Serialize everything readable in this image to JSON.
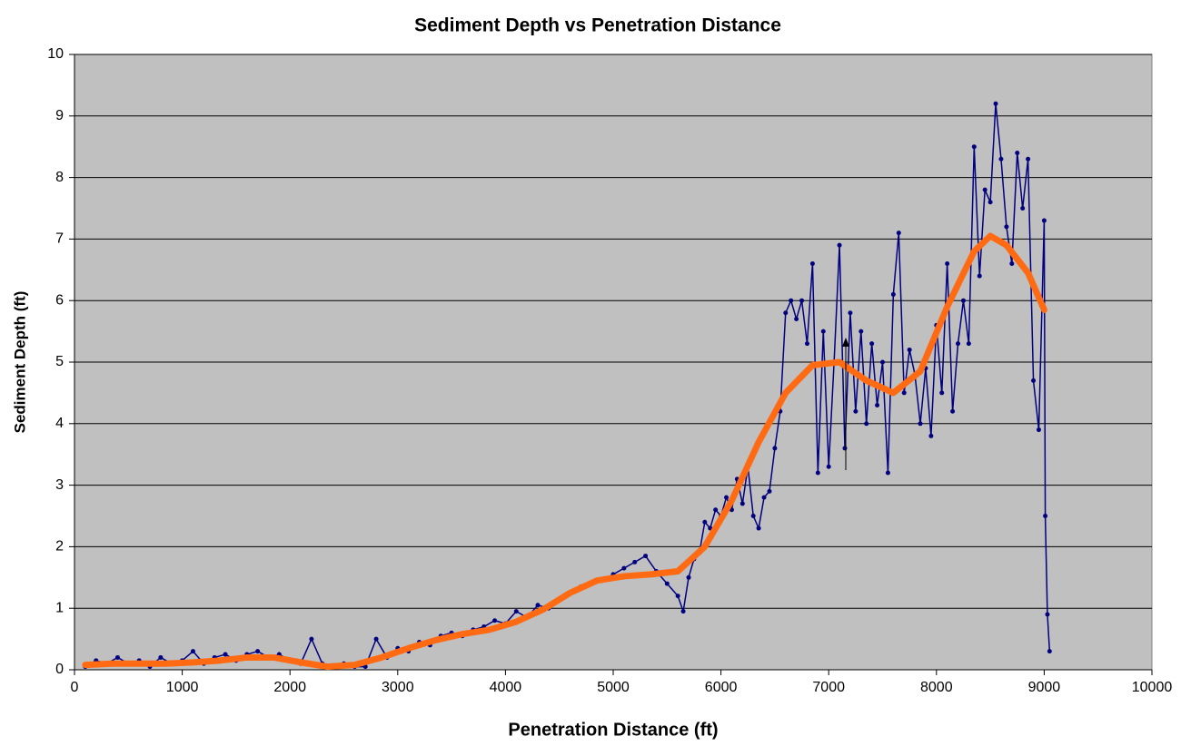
{
  "chart_data": {
    "type": "line",
    "title": "Sediment Depth vs Penetration Distance",
    "xlabel": "Penetration Distance (ft)",
    "ylabel": "Sediment Depth (ft)",
    "xlim": [
      0,
      10000
    ],
    "xticks": [
      0,
      1000,
      2000,
      3000,
      4000,
      5000,
      6000,
      7000,
      8000,
      9000,
      10000
    ],
    "ylim": [
      0,
      10
    ],
    "yticks": [
      0,
      1,
      2,
      3,
      4,
      5,
      6,
      7,
      8,
      9,
      10
    ],
    "grid": true,
    "background": "#c0c0c0",
    "series": [
      {
        "color": "#000080",
        "markers": true,
        "x": [
          100,
          200,
          300,
          400,
          500,
          600,
          700,
          800,
          900,
          1000,
          1100,
          1200,
          1300,
          1400,
          1500,
          1600,
          1700,
          1800,
          1900,
          2000,
          2100,
          2200,
          2300,
          2400,
          2500,
          2600,
          2700,
          2800,
          2900,
          3000,
          3100,
          3200,
          3300,
          3400,
          3500,
          3600,
          3700,
          3800,
          3900,
          4000,
          4100,
          4200,
          4300,
          4400,
          4500,
          4600,
          4700,
          4800,
          4900,
          5000,
          5100,
          5200,
          5300,
          5400,
          5500,
          5600,
          5650,
          5700,
          5750,
          5800,
          5850,
          5900,
          5950,
          6000,
          6050,
          6100,
          6150,
          6200,
          6250,
          6300,
          6350,
          6400,
          6450,
          6500,
          6550,
          6600,
          6650,
          6700,
          6750,
          6800,
          6850,
          6900,
          6950,
          7000,
          7050,
          7100,
          7150,
          7200,
          7250,
          7300,
          7350,
          7400,
          7450,
          7500,
          7550,
          7600,
          7650,
          7700,
          7750,
          7800,
          7850,
          7900,
          7950,
          8000,
          8050,
          8100,
          8150,
          8200,
          8250,
          8300,
          8350,
          8400,
          8450,
          8500,
          8550,
          8600,
          8650,
          8700,
          8750,
          8800,
          8850,
          8900,
          8950,
          9000,
          9010,
          9030,
          9050
        ],
        "values": [
          0.05,
          0.15,
          0.1,
          0.2,
          0.1,
          0.15,
          0.05,
          0.2,
          0.1,
          0.15,
          0.3,
          0.1,
          0.2,
          0.25,
          0.15,
          0.25,
          0.3,
          0.2,
          0.25,
          0.15,
          0.1,
          0.5,
          0.1,
          0.05,
          0.1,
          0.05,
          0.05,
          0.5,
          0.2,
          0.35,
          0.3,
          0.45,
          0.4,
          0.55,
          0.6,
          0.55,
          0.65,
          0.7,
          0.8,
          0.75,
          0.95,
          0.85,
          1.05,
          1.0,
          1.15,
          1.25,
          1.35,
          1.4,
          1.45,
          1.55,
          1.65,
          1.75,
          1.85,
          1.6,
          1.4,
          1.2,
          0.95,
          1.5,
          1.8,
          1.9,
          2.4,
          2.3,
          2.6,
          2.5,
          2.8,
          2.6,
          3.1,
          2.7,
          3.3,
          2.5,
          2.3,
          2.8,
          2.9,
          3.6,
          4.2,
          5.8,
          6.0,
          5.7,
          6.0,
          5.3,
          6.6,
          3.2,
          5.5,
          3.3,
          5.0,
          6.9,
          3.6,
          5.8,
          4.2,
          5.5,
          4.0,
          5.3,
          4.3,
          5.0,
          3.2,
          6.1,
          7.1,
          4.5,
          5.2,
          4.8,
          4.0,
          4.9,
          3.8,
          5.6,
          4.5,
          6.6,
          4.2,
          5.3,
          6.0,
          5.3,
          8.5,
          6.4,
          7.8,
          7.6,
          9.2,
          8.3,
          7.2,
          6.6,
          8.4,
          7.5,
          8.3,
          4.7,
          3.9,
          7.3,
          2.5,
          0.9,
          0.3
        ]
      },
      {
        "color": "#ff6a13",
        "markers": false,
        "x": [
          100,
          350,
          600,
          850,
          1100,
          1350,
          1600,
          1850,
          2100,
          2350,
          2600,
          2850,
          3100,
          3350,
          3600,
          3850,
          4100,
          4350,
          4600,
          4850,
          5100,
          5350,
          5600,
          5850,
          6100,
          6350,
          6600,
          6850,
          7100,
          7350,
          7600,
          7850,
          8100,
          8350,
          8500,
          8650,
          8850,
          9000
        ],
        "values": [
          0.08,
          0.1,
          0.1,
          0.1,
          0.12,
          0.15,
          0.2,
          0.2,
          0.12,
          0.05,
          0.08,
          0.2,
          0.35,
          0.48,
          0.58,
          0.65,
          0.78,
          0.98,
          1.25,
          1.45,
          1.52,
          1.55,
          1.6,
          2.0,
          2.75,
          3.7,
          4.5,
          4.95,
          5.0,
          4.7,
          4.5,
          4.85,
          5.9,
          6.8,
          7.05,
          6.9,
          6.45,
          5.85
        ]
      }
    ]
  }
}
